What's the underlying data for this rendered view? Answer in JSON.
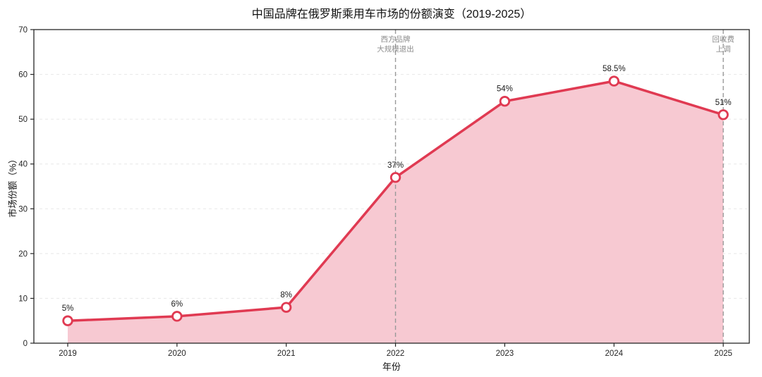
{
  "chart_data": {
    "type": "area",
    "title": "中国品牌在俄罗斯乘用车市场的份额演变（2019-2025）",
    "xlabel": "年份",
    "ylabel": "市场份额（%）",
    "x": [
      "2019",
      "2020",
      "2021",
      "2022",
      "2023",
      "2024",
      "2025"
    ],
    "values": [
      5,
      6,
      8,
      37,
      54,
      58.5,
      51
    ],
    "point_labels": [
      "5%",
      "6%",
      "8%",
      "37%",
      "54%",
      "58.5%",
      "51%"
    ],
    "ylim": [
      0,
      70
    ],
    "yticks": [
      0,
      10,
      20,
      30,
      40,
      50,
      60,
      70
    ],
    "grid": {
      "horizontal": true,
      "style": "dashed",
      "color": "#e7e7e7"
    },
    "legend_position": "none",
    "colors": {
      "line": "#e03a52",
      "fill": "#f7c9d2",
      "marker_fill": "#ffffff",
      "marker_edge": "#e03a52",
      "annotation_line": "#999999",
      "annotation_text": "#8c8c8c",
      "axis": "#262626",
      "tick_text": "#262626",
      "label_text": "#1a1a1a"
    },
    "annotations": [
      {
        "x": "2022",
        "lines": [
          "西方品牌",
          "大规模退出"
        ]
      },
      {
        "x": "2025",
        "lines": [
          "回收费",
          "上调"
        ]
      }
    ]
  }
}
